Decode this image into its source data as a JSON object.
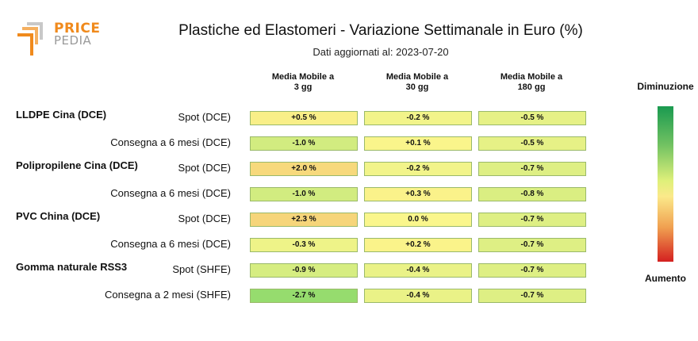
{
  "logo": {
    "line1": "PRICE",
    "line2": "PEDIA"
  },
  "header": {
    "title": "Plastiche ed Elastomeri - Variazione Settimanale in Euro (%)",
    "subtitle": "Dati aggiornati al: 2023-07-20"
  },
  "colors": {
    "legend_top": "#1a9a50",
    "legend_mid": "#fbf07a",
    "legend_bottom": "#d42020",
    "cell_border": "#9ab96a"
  },
  "legend": {
    "top": "Diminuzione",
    "bottom": "Aumento"
  },
  "chart_data": {
    "type": "table",
    "columns": [
      "Media Mobile a 3 gg",
      "Media Mobile a 30 gg",
      "Media Mobile a 180 gg"
    ],
    "groups": [
      "LLDPE Cina (DCE)",
      "Polipropilene Cina (DCE)",
      "PVC China (DCE)",
      "Gomma naturale RSS3"
    ],
    "rows": [
      {
        "group": "LLDPE Cina (DCE)",
        "label": "Spot (DCE)",
        "values": [
          0.5,
          -0.2,
          -0.5
        ],
        "text": [
          "+0.5 %",
          "-0.2 %",
          "-0.5 %"
        ]
      },
      {
        "group": "LLDPE Cina (DCE)",
        "label": "Consegna a 6 mesi (DCE)",
        "values": [
          -1.0,
          0.1,
          -0.5
        ],
        "text": [
          "-1.0 %",
          "+0.1 %",
          "-0.5 %"
        ]
      },
      {
        "group": "Polipropilene Cina (DCE)",
        "label": "Spot (DCE)",
        "values": [
          2.0,
          -0.2,
          -0.7
        ],
        "text": [
          "+2.0 %",
          "-0.2 %",
          "-0.7 %"
        ]
      },
      {
        "group": "Polipropilene Cina (DCE)",
        "label": "Consegna a 6 mesi (DCE)",
        "values": [
          -1.0,
          0.3,
          -0.8
        ],
        "text": [
          "-1.0 %",
          "+0.3 %",
          "-0.8 %"
        ]
      },
      {
        "group": "PVC China (DCE)",
        "label": "Spot (DCE)",
        "values": [
          2.3,
          0.0,
          -0.7
        ],
        "text": [
          "+2.3 %",
          "0.0 %",
          "-0.7 %"
        ]
      },
      {
        "group": "PVC China (DCE)",
        "label": "Consegna a 6 mesi (DCE)",
        "values": [
          -0.3,
          0.2,
          -0.7
        ],
        "text": [
          "-0.3 %",
          "+0.2 %",
          "-0.7 %"
        ]
      },
      {
        "group": "Gomma naturale RSS3",
        "label": "Spot (SHFE)",
        "values": [
          -0.9,
          -0.4,
          -0.7
        ],
        "text": [
          "-0.9 %",
          "-0.4 %",
          "-0.7 %"
        ]
      },
      {
        "group": "Gomma naturale RSS3",
        "label": "Consegna a 2 mesi (SHFE)",
        "values": [
          -2.7,
          -0.4,
          -0.7
        ],
        "text": [
          "-2.7 %",
          "-0.4 %",
          "-0.7 %"
        ]
      }
    ]
  }
}
